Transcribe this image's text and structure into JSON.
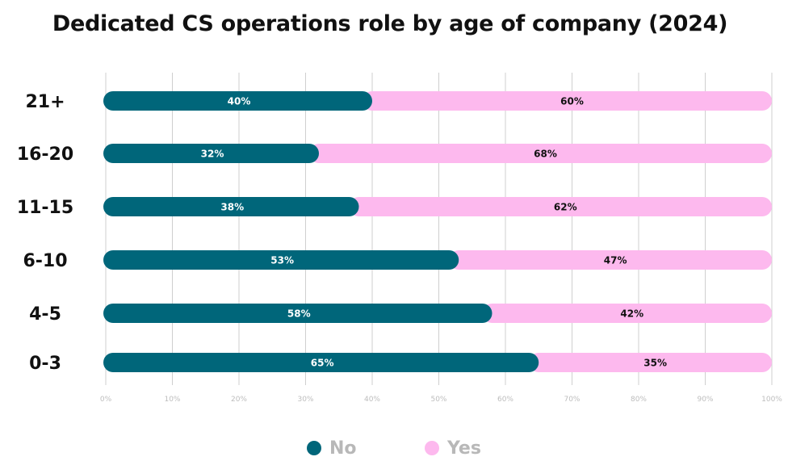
{
  "chart_data": {
    "type": "bar",
    "orientation": "horizontal",
    "stacked": true,
    "title": "Dedicated CS operations role by age of company (2024)",
    "categories": [
      "21+",
      "16-20",
      "11-15",
      "6-10",
      "4-5",
      "0-3"
    ],
    "series": [
      {
        "name": "No",
        "color": "#00667a",
        "label_color": "#ffffff",
        "values": [
          40,
          32,
          38,
          53,
          58,
          65
        ],
        "labels": [
          "40%",
          "32%",
          "38%",
          "53%",
          "58%",
          "65%"
        ]
      },
      {
        "name": "Yes",
        "color": "#fdb9ee",
        "label_color": "#111111",
        "values": [
          60,
          68,
          62,
          47,
          42,
          35
        ],
        "labels": [
          "60%",
          "68%",
          "62%",
          "47%",
          "42%",
          "35%"
        ]
      }
    ],
    "xlim": [
      0,
      100
    ],
    "xticks": [
      0,
      10,
      20,
      30,
      40,
      50,
      60,
      70,
      80,
      90,
      100
    ],
    "xtick_labels": [
      "0%",
      "10%",
      "20%",
      "30%",
      "40%",
      "50%",
      "60%",
      "70%",
      "80%",
      "90%",
      "100%"
    ],
    "grid": true,
    "legend_position": "bottom-center"
  }
}
